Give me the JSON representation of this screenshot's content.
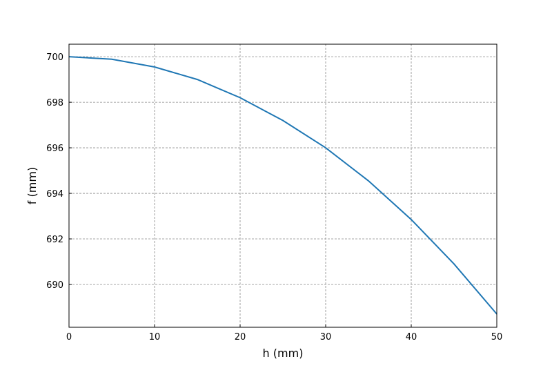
{
  "chart_data": {
    "type": "line",
    "x_label": "h (mm)",
    "y_label": "f (mm)",
    "x": [
      0,
      5,
      10,
      15,
      20,
      25,
      30,
      35,
      40,
      45,
      50
    ],
    "series": [
      {
        "name": "f",
        "color": "#1f77b4",
        "values": [
          700,
          699.89,
          699.55,
          699.0,
          698.2,
          697.2,
          696.0,
          694.55,
          692.85,
          690.9,
          688.7
        ]
      }
    ],
    "xlim": [
      0,
      50
    ],
    "ylim": [
      688.12,
      700.55
    ],
    "xticks": [
      0,
      10,
      20,
      30,
      40,
      50
    ],
    "yticks": [
      690,
      692,
      694,
      696,
      698,
      700
    ],
    "grid": true
  }
}
